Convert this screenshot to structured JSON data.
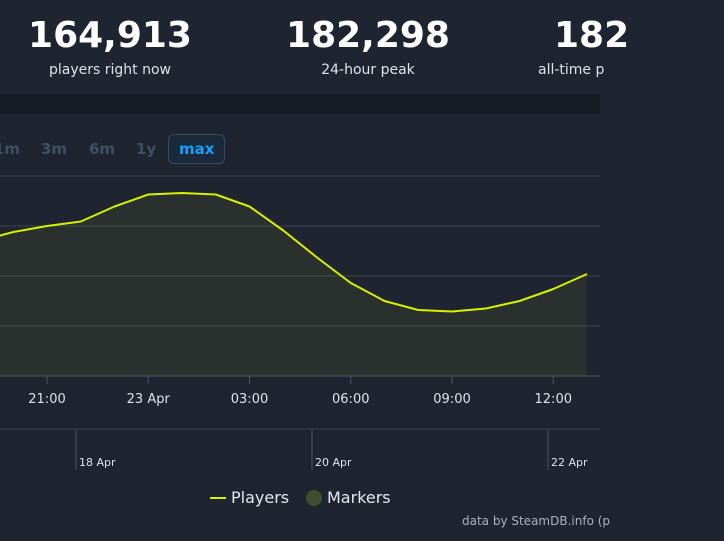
{
  "stats": [
    {
      "value": "164,913",
      "label": "players right now"
    },
    {
      "value": "182,298",
      "label": "24-hour peak"
    },
    {
      "value": "182",
      "label": "all-time p"
    }
  ],
  "range_buttons": [
    "1m",
    "3m",
    "6m",
    "1y",
    "max"
  ],
  "active_range": "max",
  "legend": {
    "players": "Players",
    "markers": "Markers"
  },
  "credit": "data by SteamDB.info (p",
  "colors": {
    "line": "#d7f000",
    "marker": "#3f4f30",
    "active": "#1a9fff"
  },
  "chart_data": {
    "type": "line",
    "x_tick_labels": [
      "21:00",
      "23 Apr",
      "03:00",
      "06:00",
      "09:00",
      "12:00"
    ],
    "navigator_labels": [
      "18 Apr",
      "20 Apr",
      "22 Apr"
    ],
    "series": [
      {
        "name": "Players",
        "x": [
          "19:30",
          "20:00",
          "21:00",
          "22:00",
          "23:00",
          "00:00",
          "01:00",
          "02:00",
          "03:00",
          "04:00",
          "05:00",
          "06:00",
          "07:00",
          "08:00",
          "09:00",
          "10:00",
          "11:00",
          "12:00",
          "13:00"
        ],
        "y": [
          0.93,
          0.96,
          1.0,
          1.03,
          1.13,
          1.21,
          1.22,
          1.21,
          1.13,
          0.97,
          0.79,
          0.62,
          0.5,
          0.44,
          0.43,
          0.45,
          0.5,
          0.58,
          0.68
        ]
      }
    ],
    "grid": true,
    "legend_position": "bottom-center"
  }
}
